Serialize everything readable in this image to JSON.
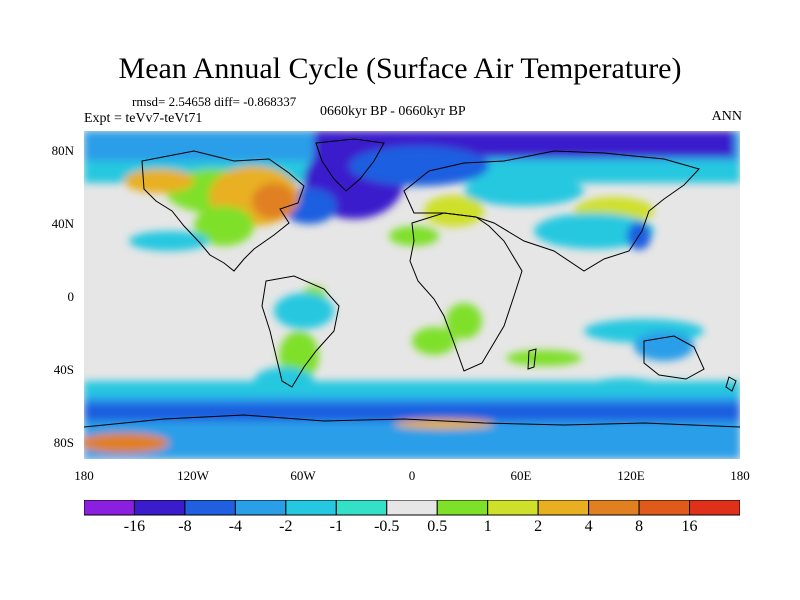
{
  "title": "Mean Annual Cycle (Surface Air Temperature)",
  "stats": "rmsd= 2.54658 diff= -0.868337",
  "experiment": "Expt = teVv7-teVt71",
  "period": "0660kyr BP - 0660kyr BP",
  "season": "ANN",
  "lat_ticks": [
    "80N",
    "40N",
    "0",
    "40S",
    "80S"
  ],
  "lon_ticks": [
    "180",
    "120W",
    "60W",
    "0",
    "60E",
    "120E",
    "180"
  ],
  "colorbar": {
    "labels": [
      "-16",
      "-8",
      "-4",
      "-2",
      "-1",
      "-0.5",
      "0.5",
      "1",
      "2",
      "4",
      "8",
      "16"
    ],
    "colors": [
      "#8a1fe0",
      "#3a1ccc",
      "#1f5fe0",
      "#2b9ee8",
      "#25c8e0",
      "#34e0c8",
      "#e6e6e6",
      "#7fe02a",
      "#cfe02a",
      "#e8b020",
      "#e08020",
      "#e05a1a",
      "#e0301a"
    ]
  }
}
